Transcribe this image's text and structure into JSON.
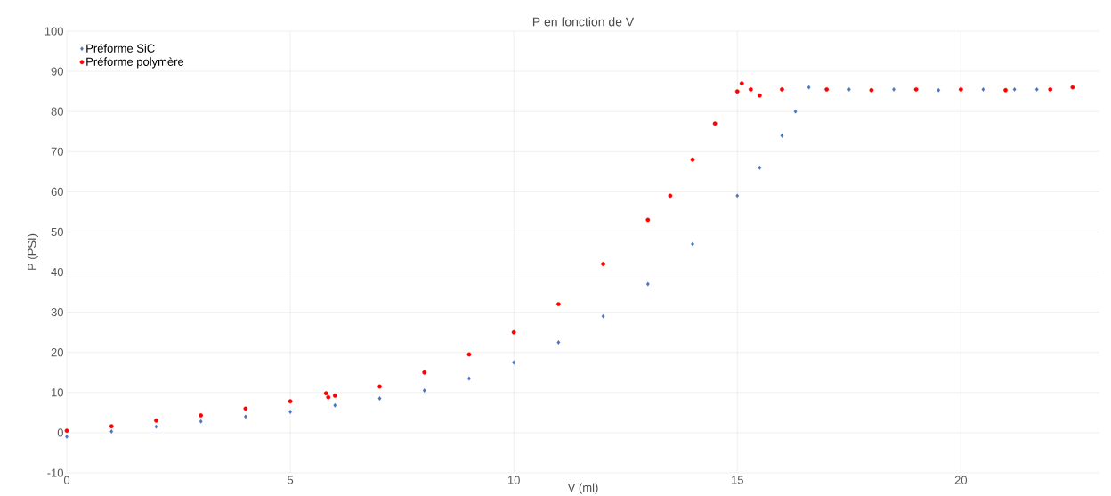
{
  "chart_data": {
    "type": "scatter",
    "title": "P en fonction de V",
    "xlabel": "V (ml)",
    "ylabel": "P (PSI)",
    "xlim": [
      0,
      23.1
    ],
    "xticks": [
      0,
      5,
      10,
      15,
      20
    ],
    "ylim": [
      -10,
      100
    ],
    "yticks": [
      -10,
      0,
      10,
      20,
      30,
      40,
      50,
      60,
      70,
      80,
      90,
      100
    ],
    "grid": true,
    "legend": "top left",
    "series": [
      {
        "name": "Préforme SiC",
        "color": "#4472c4",
        "marker": "diamond",
        "x": [
          0,
          1,
          2,
          3,
          4,
          5,
          6,
          7,
          8,
          9,
          10,
          11,
          12,
          13,
          14,
          15,
          15.5,
          16,
          16.3,
          16.6,
          17.5,
          18.5,
          19.5,
          20.5,
          21.2,
          21.7
        ],
        "values": [
          -1,
          0.3,
          1.5,
          2.8,
          4,
          5.2,
          6.8,
          8.5,
          10.5,
          13.5,
          17.5,
          22.5,
          29,
          37,
          47,
          59,
          66,
          74,
          80,
          86,
          85.5,
          85.5,
          85.3,
          85.5,
          85.5,
          85.5
        ]
      },
      {
        "name": "Préforme polymère",
        "color": "#ff0000",
        "marker": "circle",
        "x": [
          0,
          1,
          2,
          3,
          4,
          5,
          5.8,
          5.85,
          6,
          7,
          8,
          9,
          10,
          11,
          12,
          13,
          13.5,
          14,
          14.5,
          15,
          15.1,
          15.3,
          15.5,
          16,
          17,
          18,
          19,
          20,
          21,
          22,
          22.5
        ],
        "values": [
          0.5,
          1.6,
          3,
          4.3,
          6,
          7.8,
          9.8,
          8.8,
          9.2,
          11.5,
          15,
          19.5,
          25,
          32,
          42,
          53,
          59,
          68,
          77,
          85,
          87,
          85.5,
          84,
          85.5,
          85.5,
          85.3,
          85.5,
          85.5,
          85.3,
          85.5,
          86
        ]
      }
    ]
  }
}
